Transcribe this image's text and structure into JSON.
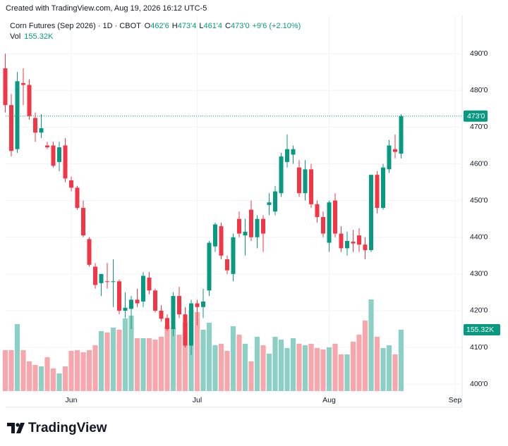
{
  "chart_data": {
    "type": "candlestick",
    "watermark": "Created with TradingView.com, Aug 19, 2026 16:12 UTC-5",
    "title": "Corn Futures (Sep 2026) · 1D · CBOT",
    "legend": [
      {
        "key": "O",
        "text": "462'6"
      },
      {
        "key": "H",
        "text": "473'4"
      },
      {
        "key": "L",
        "text": "461'4"
      },
      {
        "key": "C",
        "text": "473'0"
      }
    ],
    "change": "+9'6 (+2.10%)",
    "volume_title": "Vol",
    "volume_label": "155.32K",
    "last_price_label": "473'0",
    "brand": "TradingView",
    "up_color": "#089981",
    "down_color": "#f23645",
    "volume_up_color": "#8ccfc4",
    "volume_down_color": "#f7a6ac",
    "grid": true,
    "ylim": [
      393.7,
      500.4
    ],
    "vlim": [
      0,
      260000
    ],
    "yticks": [
      {
        "value": 400,
        "label": "400'0"
      },
      {
        "value": 410,
        "label": "410'0"
      },
      {
        "value": 420,
        "label": "420'0"
      },
      {
        "value": 430,
        "label": "430'0"
      },
      {
        "value": 440,
        "label": "440'0"
      },
      {
        "value": 450,
        "label": "450'0"
      },
      {
        "value": 460,
        "label": "460'0"
      },
      {
        "value": 470,
        "label": "470'0"
      },
      {
        "value": 480,
        "label": "480'0"
      },
      {
        "value": 490,
        "label": "490'0"
      }
    ],
    "categories": [
      null,
      null,
      null,
      null,
      null,
      null,
      null,
      null,
      null,
      null,
      null,
      "Jun",
      null,
      null,
      null,
      null,
      null,
      null,
      null,
      null,
      null,
      null,
      null,
      null,
      null,
      null,
      null,
      null,
      null,
      null,
      null,
      null,
      "Jul",
      null,
      null,
      null,
      null,
      null,
      null,
      null,
      null,
      null,
      null,
      null,
      null,
      null,
      null,
      null,
      null,
      null,
      null,
      null,
      null,
      null,
      "Aug",
      null,
      null,
      null,
      null,
      null,
      null,
      null,
      null,
      null,
      null,
      null,
      null,
      null,
      null,
      null,
      null,
      null,
      null,
      null,
      null,
      "Sep"
    ],
    "open": [
      486,
      476,
      464,
      482,
      481.5,
      472.5,
      468.5,
      465,
      465,
      460.5,
      465,
      455.5,
      453.5,
      448,
      439.5,
      432,
      427.5,
      428,
      427.8,
      428,
      420,
      420.5,
      423,
      422.5,
      429,
      425.5,
      420,
      418,
      415,
      424,
      419,
      410.5,
      422,
      421,
      425.5,
      437.5,
      443,
      434,
      430,
      445,
      440.5,
      447.5,
      440,
      445,
      448.8,
      447,
      452,
      460.5,
      462.5,
      459,
      452,
      458.5,
      449,
      445.5,
      438.5,
      450,
      441,
      437,
      438.8,
      440.5,
      438,
      436.5,
      457,
      448,
      458.5,
      464,
      462.75,
      null,
      null,
      null,
      null,
      null,
      null,
      null,
      null,
      null
    ],
    "high": [
      490,
      479,
      485,
      486,
      483,
      474,
      473.5,
      466,
      466,
      466,
      467,
      456.5,
      454,
      450,
      440,
      433,
      430,
      433,
      434,
      428.5,
      425,
      424,
      426,
      430.5,
      430.5,
      426,
      421.5,
      419,
      425,
      426.5,
      421,
      423,
      423,
      426,
      439,
      444,
      444,
      435,
      441,
      447,
      445,
      450,
      446,
      446,
      452,
      454,
      463,
      468,
      465,
      461,
      461,
      460,
      450,
      447,
      450,
      452,
      443,
      441.5,
      442,
      442.5,
      440,
      457,
      458,
      460,
      466.5,
      468,
      473.5,
      null,
      null,
      null,
      null,
      null,
      null,
      null,
      null,
      null
    ],
    "low": [
      474,
      462,
      463,
      476,
      472,
      466,
      467,
      464,
      459,
      458,
      455,
      452.5,
      447.5,
      440,
      432,
      426,
      424,
      426,
      421,
      419,
      418,
      415,
      421,
      421,
      424.5,
      419.5,
      417,
      414.5,
      413,
      418,
      410,
      408,
      416,
      418,
      424,
      436,
      434,
      430,
      428,
      440,
      435,
      439,
      437,
      436,
      446,
      446,
      451,
      459,
      460,
      451,
      450,
      448,
      444,
      440,
      436,
      440,
      436,
      435,
      436,
      436,
      434,
      436,
      446.5,
      447.5,
      457.5,
      461.5,
      461.5,
      null,
      null,
      null,
      null,
      null,
      null,
      null,
      null,
      null
    ],
    "close": [
      476,
      463.5,
      482.5,
      481.5,
      473,
      468.5,
      469.7,
      464.5,
      459.5,
      464.5,
      456,
      453.5,
      448,
      440.5,
      432.5,
      427,
      430,
      427.8,
      428,
      420,
      420.8,
      423,
      422,
      429.5,
      425.5,
      420,
      417.8,
      415,
      424,
      419,
      410.5,
      422,
      421,
      422.5,
      438.5,
      443.5,
      435,
      431,
      440,
      441,
      441.5,
      440,
      445,
      441,
      449.5,
      452.5,
      462,
      464,
      464,
      452,
      458.5,
      449,
      445.5,
      441,
      449.5,
      441,
      437,
      439,
      438.3,
      438,
      436.5,
      457,
      448,
      459,
      465,
      463.25,
      473,
      null,
      null,
      null,
      null,
      null,
      null,
      null,
      null,
      null
    ],
    "volume": [
      103500,
      103500,
      169600,
      103500,
      75000,
      66000,
      62500,
      85700,
      57100,
      44600,
      62500,
      101700,
      103500,
      98200,
      103500,
      116000,
      151700,
      148200,
      160700,
      155300,
      183900,
      191000,
      133900,
      133900,
      133900,
      130300,
      137400,
      166000,
      160700,
      142800,
      173100,
      205300,
      199900,
      155300,
      173100,
      116000,
      119600,
      101700,
      164200,
      142800,
      119600,
      75000,
      137400,
      116000,
      94600,
      137400,
      130300,
      108900,
      133900,
      119600,
      116000,
      119600,
      108900,
      105300,
      110700,
      119600,
      92800,
      92800,
      125000,
      142800,
      178500,
      232000,
      137400,
      108900,
      116000,
      92800,
      155320,
      null,
      null,
      null,
      null,
      null,
      null,
      null,
      null,
      null
    ]
  }
}
